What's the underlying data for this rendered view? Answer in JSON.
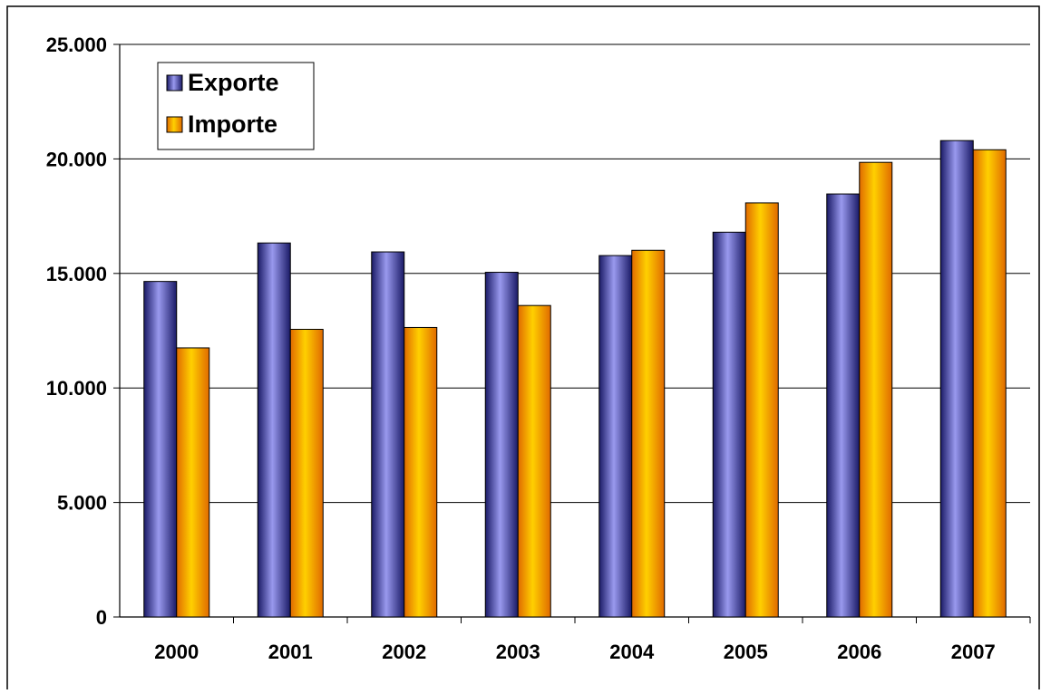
{
  "chart_data": {
    "type": "bar",
    "categories": [
      "2000",
      "2001",
      "2002",
      "2003",
      "2004",
      "2005",
      "2006",
      "2007"
    ],
    "series": [
      {
        "name": "Exporte",
        "values": [
          14650,
          16330,
          15940,
          15050,
          15780,
          16800,
          18470,
          20800
        ],
        "color": "#6666cc",
        "gradient": [
          "#1a1a66",
          "#9999ee",
          "#1a1a66"
        ]
      },
      {
        "name": "Importe",
        "values": [
          11750,
          12560,
          12640,
          13600,
          16010,
          18080,
          19850,
          20400
        ],
        "color": "#ffaa00",
        "gradient": [
          "#e06a00",
          "#ffd000",
          "#e06a00"
        ]
      }
    ],
    "yticks": [
      "0",
      "5.000",
      "10.000",
      "15.000",
      "20.000",
      "25.000"
    ],
    "ylim": [
      0,
      25000
    ],
    "grid": true,
    "legend_position": "top-left, inside plot"
  }
}
